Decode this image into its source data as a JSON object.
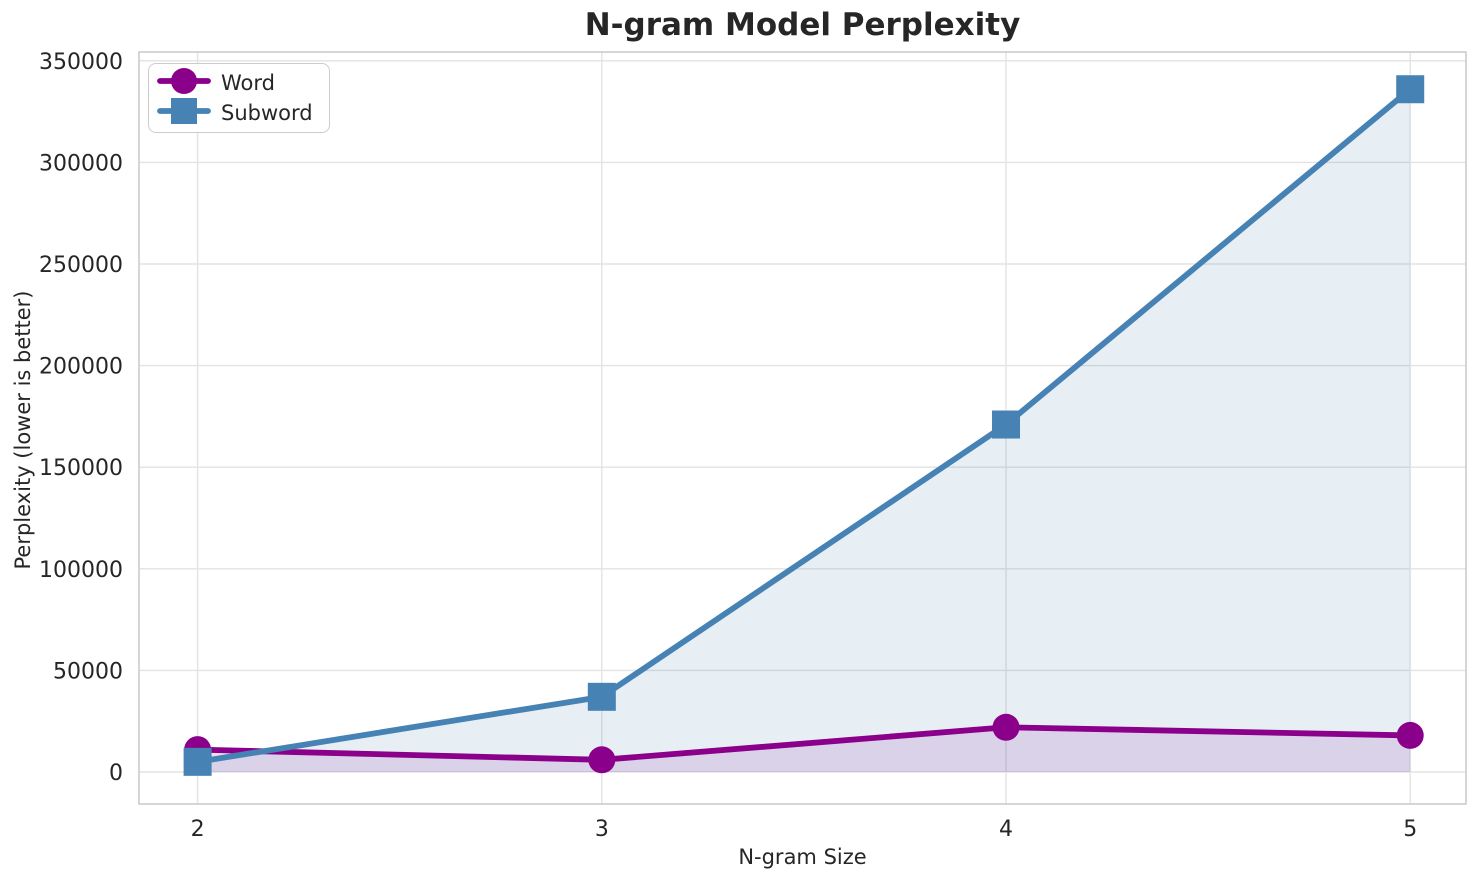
{
  "chart_data": {
    "type": "line",
    "title": "N-gram Model Perplexity",
    "xlabel": "N-gram Size",
    "ylabel": "Perplexity (lower is better)",
    "x": [
      2,
      3,
      4,
      5
    ],
    "series": [
      {
        "name": "Word",
        "marker": "circle",
        "color": "#8B008B",
        "values": [
          11000,
          6000,
          22000,
          18000
        ]
      },
      {
        "name": "Subword",
        "marker": "square",
        "color": "#4682B4",
        "values": [
          5000,
          37000,
          171000,
          336000
        ]
      }
    ],
    "xticks": [
      2,
      3,
      4,
      5
    ],
    "yticks": [
      0,
      50000,
      100000,
      150000,
      200000,
      250000,
      300000,
      350000
    ],
    "xlim": [
      1.855,
      5.138
    ],
    "ylim": [
      -15750,
      354330
    ],
    "grid": true,
    "legend_position": "upper-left",
    "area_fill": true,
    "fill_alpha": 0.13,
    "fill_baseline": 0,
    "line_width": 5.8,
    "colors": {
      "grid": "#e3e3e3",
      "spine": "#cccccc",
      "text": "#262626",
      "background": "#ffffff"
    }
  }
}
